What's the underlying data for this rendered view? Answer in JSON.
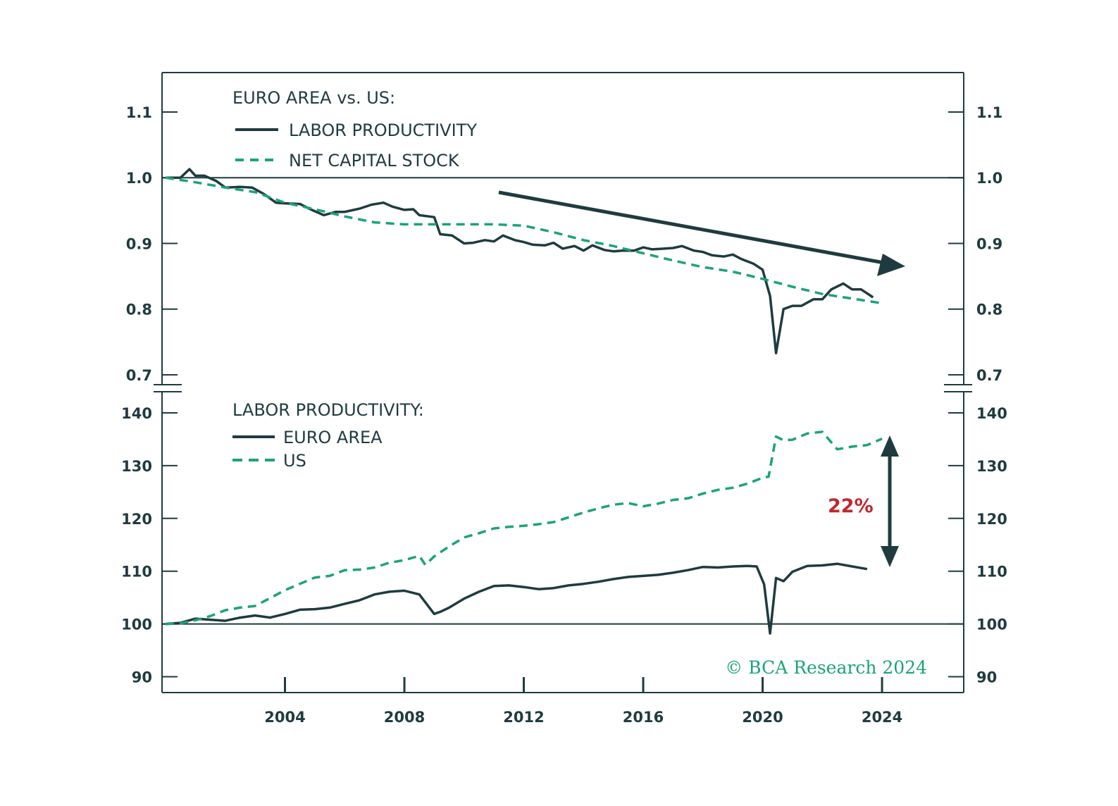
{
  "colors": {
    "ink": "#1f3b3f",
    "green": "#1aa37a",
    "red": "#c0272d"
  },
  "chart_data": [
    {
      "id": "top",
      "type": "line",
      "title": "EURO AREA vs. US:",
      "legend": [
        {
          "label": "LABOR PRODUCTIVITY",
          "style": "solid"
        },
        {
          "label": "NET CAPITAL STOCK",
          "style": "dashed"
        }
      ],
      "ylim": [
        0.685,
        1.16
      ],
      "yticks": [
        "0.7",
        "0.8",
        "0.9",
        "1.0",
        "1.1"
      ],
      "reference_line": 1.0,
      "series": [
        {
          "name": "LABOR PRODUCTIVITY",
          "style": "solid",
          "x": [
            2000.0,
            2000.5,
            2000.8,
            2001.0,
            2001.3,
            2001.7,
            2002.0,
            2002.5,
            2002.9,
            2003.3,
            2003.7,
            2004.0,
            2004.5,
            2004.9,
            2005.3,
            2005.7,
            2006.0,
            2006.5,
            2006.9,
            2007.3,
            2007.6,
            2008.0,
            2008.3,
            2008.5,
            2009.0,
            2009.2,
            2009.6,
            2010.0,
            2010.3,
            2010.7,
            2011.0,
            2011.3,
            2011.7,
            2012.0,
            2012.3,
            2012.7,
            2013.0,
            2013.3,
            2013.7,
            2014.0,
            2014.3,
            2014.7,
            2015.0,
            2015.3,
            2015.7,
            2016.0,
            2016.3,
            2016.7,
            2017.0,
            2017.3,
            2017.7,
            2018.0,
            2018.3,
            2018.7,
            2019.0,
            2019.3,
            2019.7,
            2020.0,
            2020.25,
            2020.45,
            2020.7,
            2021.0,
            2021.3,
            2021.7,
            2022.0,
            2022.3,
            2022.7,
            2023.0,
            2023.3,
            2023.7
          ],
          "y": [
            1.0,
            1.0,
            1.013,
            1.003,
            1.003,
            0.995,
            0.985,
            0.986,
            0.985,
            0.975,
            0.962,
            0.961,
            0.96,
            0.951,
            0.943,
            0.948,
            0.948,
            0.953,
            0.959,
            0.962,
            0.956,
            0.951,
            0.952,
            0.943,
            0.94,
            0.914,
            0.912,
            0.9,
            0.901,
            0.905,
            0.903,
            0.912,
            0.905,
            0.902,
            0.898,
            0.897,
            0.901,
            0.892,
            0.896,
            0.889,
            0.897,
            0.89,
            0.888,
            0.889,
            0.889,
            0.894,
            0.891,
            0.892,
            0.893,
            0.896,
            0.889,
            0.887,
            0.882,
            0.88,
            0.883,
            0.876,
            0.869,
            0.86,
            0.82,
            0.733,
            0.8,
            0.805,
            0.805,
            0.815,
            0.815,
            0.83,
            0.839,
            0.83,
            0.83,
            0.818
          ]
        },
        {
          "name": "NET CAPITAL STOCK",
          "style": "dashed",
          "x": [
            2000.0,
            2001.0,
            2002.0,
            2003.0,
            2004.0,
            2005.0,
            2006.0,
            2007.0,
            2008.0,
            2009.0,
            2010.0,
            2011.0,
            2012.0,
            2013.0,
            2014.0,
            2015.0,
            2016.0,
            2017.0,
            2018.0,
            2019.0,
            2020.0,
            2021.0,
            2022.0,
            2023.0,
            2024.0
          ],
          "y": [
            1.0,
            0.993,
            0.985,
            0.978,
            0.962,
            0.952,
            0.941,
            0.932,
            0.929,
            0.929,
            0.929,
            0.929,
            0.927,
            0.917,
            0.905,
            0.896,
            0.885,
            0.874,
            0.864,
            0.857,
            0.846,
            0.834,
            0.823,
            0.816,
            0.809
          ]
        }
      ],
      "annotation": "downward trend arrow"
    },
    {
      "id": "bottom",
      "type": "line",
      "title": "LABOR PRODUCTIVITY:",
      "legend": [
        {
          "label": "EURO AREA",
          "style": "solid"
        },
        {
          "label": "US",
          "style": "dashed"
        }
      ],
      "ylim": [
        87,
        144
      ],
      "yticks": [
        "90",
        "100",
        "110",
        "120",
        "130",
        "140"
      ],
      "reference_line": 100,
      "xlabel": "",
      "xticks": [
        "2004",
        "2008",
        "2012",
        "2016",
        "2020",
        "2024"
      ],
      "xlim": [
        2000.0,
        2026.5
      ],
      "series": [
        {
          "name": "EURO AREA",
          "style": "solid",
          "x": [
            2000.0,
            2000.5,
            2001.0,
            2001.5,
            2002.0,
            2002.5,
            2003.0,
            2003.5,
            2004.0,
            2004.5,
            2005.0,
            2005.5,
            2006.0,
            2006.5,
            2007.0,
            2007.5,
            2008.0,
            2008.5,
            2009.0,
            2009.2,
            2009.5,
            2010.0,
            2010.5,
            2011.0,
            2011.5,
            2012.0,
            2012.5,
            2013.0,
            2013.5,
            2014.0,
            2014.5,
            2015.0,
            2015.5,
            2016.0,
            2016.5,
            2017.0,
            2017.5,
            2018.0,
            2018.5,
            2019.0,
            2019.5,
            2019.8,
            2020.05,
            2020.25,
            2020.45,
            2020.7,
            2021.0,
            2021.5,
            2022.0,
            2022.5,
            2023.0,
            2023.5
          ],
          "y": [
            100,
            100.2,
            101,
            100.8,
            100.6,
            101.2,
            101.6,
            101.2,
            101.9,
            102.7,
            102.8,
            103.1,
            103.8,
            104.5,
            105.6,
            106.1,
            106.3,
            105.6,
            101.9,
            102.3,
            103.1,
            104.8,
            106.1,
            107.2,
            107.3,
            107,
            106.6,
            106.8,
            107.3,
            107.6,
            108,
            108.5,
            108.9,
            109.1,
            109.3,
            109.7,
            110.2,
            110.8,
            110.7,
            110.9,
            111,
            110.9,
            107.5,
            98.2,
            108.7,
            108.1,
            109.9,
            111,
            111.1,
            111.4,
            110.9,
            110.4
          ]
        },
        {
          "name": "US",
          "style": "dashed",
          "x": [
            2000.0,
            2000.5,
            2001.0,
            2001.5,
            2002.0,
            2002.5,
            2003.0,
            2003.5,
            2004.0,
            2004.5,
            2005.0,
            2005.5,
            2006.0,
            2006.5,
            2007.0,
            2007.5,
            2008.0,
            2008.5,
            2008.7,
            2009.0,
            2009.5,
            2010.0,
            2010.5,
            2011.0,
            2011.5,
            2012.0,
            2012.5,
            2013.0,
            2013.5,
            2014.0,
            2014.5,
            2015.0,
            2015.5,
            2016.0,
            2016.5,
            2017.0,
            2017.5,
            2018.0,
            2018.5,
            2019.0,
            2019.5,
            2020.0,
            2020.2,
            2020.45,
            2020.7,
            2021.0,
            2021.5,
            2022.0,
            2022.5,
            2023.0,
            2023.5,
            2024.0
          ],
          "y": [
            100,
            100.1,
            100.7,
            101.5,
            102.6,
            103.1,
            103.4,
            104.9,
            106.4,
            107.6,
            108.8,
            109.1,
            110.2,
            110.3,
            110.7,
            111.6,
            112.1,
            112.9,
            111.2,
            112.8,
            114.7,
            116.4,
            117.2,
            118.1,
            118.4,
            118.6,
            118.9,
            119.3,
            120.2,
            121.1,
            121.9,
            122.6,
            122.9,
            122.3,
            122.8,
            123.5,
            123.8,
            124.7,
            125.4,
            125.8,
            126.6,
            127.7,
            127.9,
            135.5,
            134.8,
            134.9,
            136.1,
            136.4,
            133.1,
            133.6,
            133.9,
            135.1
          ]
        }
      ],
      "annotation": "22%"
    }
  ],
  "credit": {
    "copyright": "©",
    "brand": "BCA",
    "word": "Research",
    "year": "2024"
  }
}
